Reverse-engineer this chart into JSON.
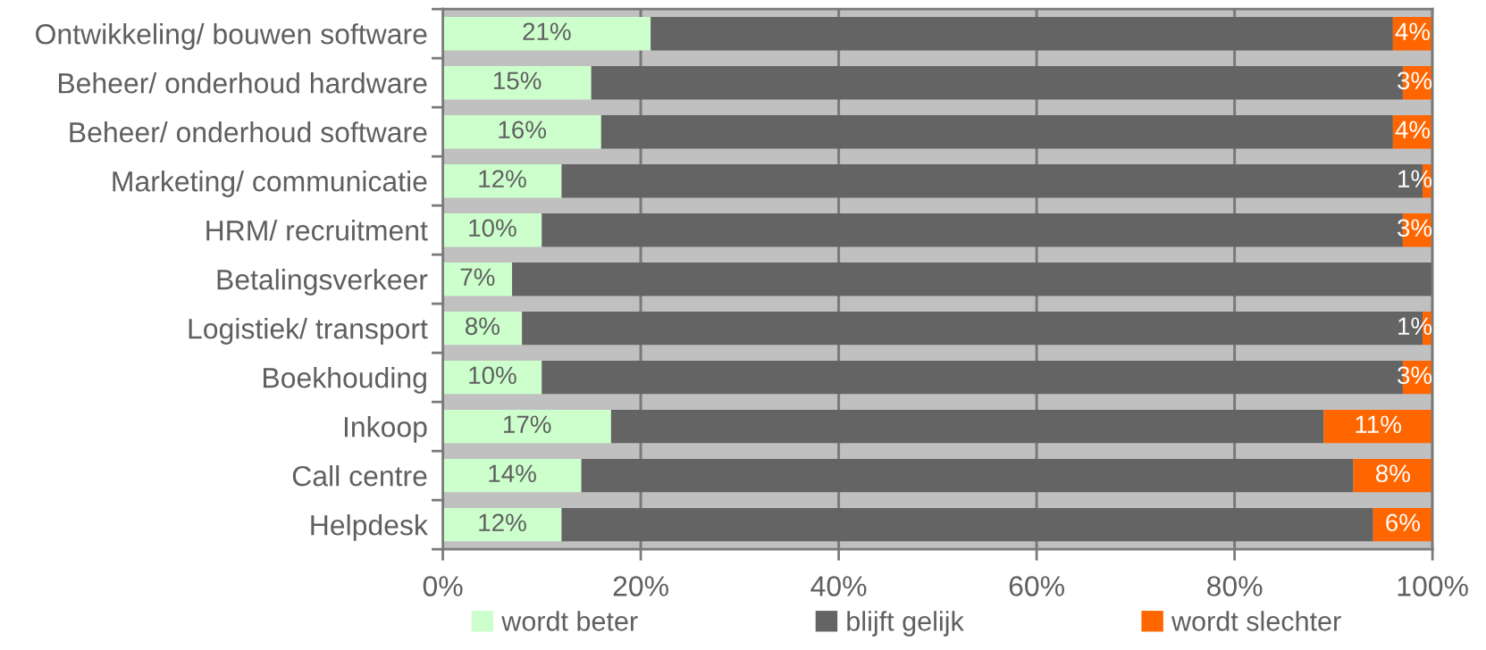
{
  "chart_data": {
    "type": "bar",
    "orientation": "horizontal",
    "stacked": true,
    "categories": [
      "Ontwikkeling/ bouwen software",
      "Beheer/ onderhoud hardware",
      "Beheer/ onderhoud software",
      "Marketing/ communicatie",
      "HRM/ recruitment",
      "Betalingsverkeer",
      "Logistiek/ transport",
      "Boekhouding",
      "Inkoop",
      "Call centre",
      "Helpdesk"
    ],
    "series": [
      {
        "name": "wordt beter",
        "color": "#ccffcc",
        "values": [
          21,
          15,
          16,
          12,
          10,
          7,
          8,
          10,
          17,
          14,
          12
        ],
        "value_labels": [
          "21%",
          "15%",
          "16%",
          "12%",
          "10%",
          "7%",
          "8%",
          "10%",
          "17%",
          "14%",
          "12%"
        ]
      },
      {
        "name": "blijft gelijk",
        "color": "#646464",
        "values": [
          75,
          82,
          80,
          87,
          87,
          93,
          91,
          87,
          72,
          78,
          82
        ]
      },
      {
        "name": "wordt slechter",
        "color": "#ff6600",
        "values": [
          4,
          3,
          4,
          1,
          3,
          null,
          1,
          3,
          11,
          8,
          6
        ],
        "value_labels": [
          "4%",
          "3%",
          "4%",
          "1%",
          "3%",
          null,
          "1%",
          "3%",
          "11%",
          "8%",
          "6%"
        ]
      }
    ],
    "xlim": [
      0,
      100
    ],
    "xticks": [
      {
        "value": 0,
        "label": "0%"
      },
      {
        "value": 20,
        "label": "20%"
      },
      {
        "value": 40,
        "label": "40%"
      },
      {
        "value": 60,
        "label": "60%"
      },
      {
        "value": 80,
        "label": "80%"
      },
      {
        "value": 100,
        "label": "100%"
      }
    ],
    "grid": "x",
    "legend": "bottom"
  }
}
